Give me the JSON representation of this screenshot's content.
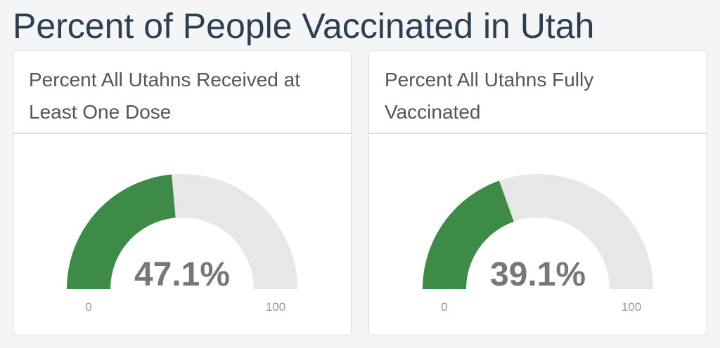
{
  "title": "Percent of People Vaccinated in Utah",
  "chart_data": [
    {
      "type": "gauge",
      "title": "Percent All Utahns Received at Least One Dose",
      "values": [
        47.1
      ],
      "value_labels": [
        "47.1%"
      ],
      "color": "#3e8a47",
      "ylim": [
        0,
        100
      ],
      "yticks": [
        0,
        100
      ]
    },
    {
      "type": "gauge",
      "title": "Percent All Utahns Fully Vaccinated",
      "values": [
        39.1
      ],
      "value_labels": [
        "39.1%"
      ],
      "color": "#3e8a47",
      "ylim": [
        0,
        100
      ],
      "yticks": [
        0,
        100
      ]
    }
  ]
}
